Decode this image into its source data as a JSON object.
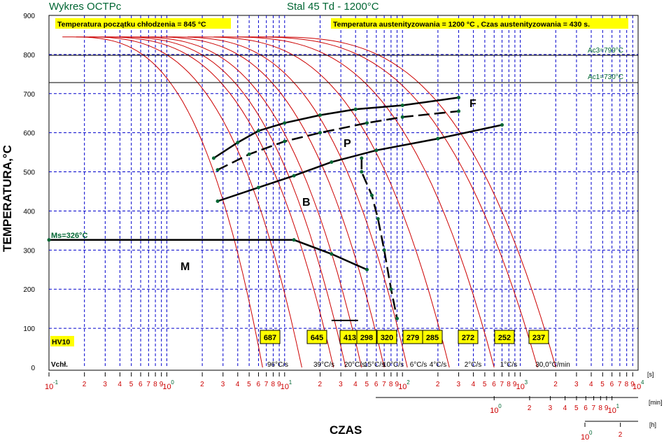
{
  "header": {
    "app_title": "Wykres OCTPc",
    "material": "Stal 45 Td - 1200°C",
    "start_temp_label": "Temperatura początku chłodzenia = 845 °C",
    "aust_label": "Temperatura austenityzowania = 1200 °C , Czas austenityzowania = 430 s."
  },
  "axes": {
    "y_label": "TEMPERATURA,°C",
    "x_label": "CZAS",
    "unit_s": "[s]",
    "unit_min": "[min]",
    "unit_h": "[h]",
    "y_ticks": [
      "0",
      "100",
      "200",
      "300",
      "400",
      "500",
      "600",
      "700",
      "800",
      "900"
    ]
  },
  "lines": {
    "ac3": "Ac3=799°C",
    "ac1": "Ac1=730°C",
    "ms": "Ms=326°C"
  },
  "regions": {
    "ferrite": "F",
    "pearlite": "P",
    "bainite": "B",
    "martensite": "M"
  },
  "hardness": {
    "title": "HV10",
    "values": [
      "687",
      "645",
      "413",
      "298",
      "320",
      "279",
      "285",
      "272",
      "252",
      "237"
    ]
  },
  "rates": {
    "title": "Vchł.",
    "values": [
      "96°C/s",
      "39°C/s",
      "20°C/s",
      "15°C/s",
      "10°C/s",
      "6°C/s",
      "4°C/s",
      "2°C/s",
      "1°C/s",
      "30,0°C/min"
    ]
  },
  "colors": {
    "curve": "#cc0000",
    "grid": "#0000cc",
    "title": "#006633",
    "box": "#ffff00",
    "log_axis": "#cc0000",
    "log_exp": "#006633"
  },
  "chart_data": {
    "type": "line",
    "title": "Stal 45 Td - 1200°C",
    "xlabel": "CZAS",
    "ylabel": "TEMPERATURA,°C",
    "x_scale": "log",
    "x_unit": "s",
    "xlim": [
      0.1,
      10000
    ],
    "ylim": [
      0,
      900
    ],
    "reference_lines": [
      {
        "name": "Ac3=799°C",
        "y": 799
      },
      {
        "name": "Ac1=730°C",
        "y": 730
      },
      {
        "name": "Ms=326°C",
        "y": 326
      }
    ],
    "transformation_lines": [
      {
        "region": "F/P start",
        "points": [
          [
            2.5,
            535
          ],
          [
            4,
            575
          ],
          [
            6,
            605
          ],
          [
            10,
            625
          ],
          [
            20,
            645
          ],
          [
            40,
            660
          ],
          [
            100,
            670
          ],
          [
            300,
            690
          ]
        ]
      },
      {
        "region": "P start",
        "points": [
          [
            2.7,
            505
          ],
          [
            5,
            545
          ],
          [
            10,
            578
          ],
          [
            20,
            600
          ],
          [
            50,
            625
          ],
          [
            100,
            640
          ],
          [
            300,
            655
          ]
        ]
      },
      {
        "region": "B start",
        "points": [
          [
            2.7,
            425
          ],
          [
            6,
            460
          ],
          [
            12,
            490
          ],
          [
            25,
            525
          ],
          [
            60,
            555
          ],
          [
            200,
            585
          ],
          [
            700,
            620
          ]
        ]
      },
      {
        "region": "B finish",
        "points": [
          [
            45,
            535
          ],
          [
            45,
            500
          ],
          [
            55,
            440
          ],
          [
            62,
            380
          ],
          [
            70,
            300
          ],
          [
            80,
            200
          ],
          [
            90,
            125
          ]
        ]
      },
      {
        "region": "M",
        "points": [
          [
            0.1,
            326
          ],
          [
            12,
            326
          ],
          [
            25,
            290
          ],
          [
            50,
            250
          ]
        ]
      }
    ],
    "hardness_hv10": [
      687,
      645,
      413,
      298,
      320,
      279,
      285,
      272,
      252,
      237
    ],
    "cooling_rates": [
      "96°C/s",
      "39°C/s",
      "20°C/s",
      "15°C/s",
      "10°C/s",
      "6°C/s",
      "4°C/s",
      "2°C/s",
      "1°C/s",
      "30,0°C/min"
    ]
  }
}
